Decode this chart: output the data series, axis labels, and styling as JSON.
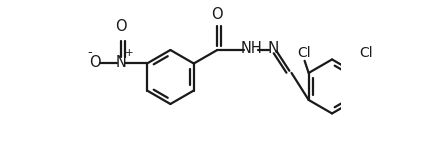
{
  "background_color": "#ffffff",
  "line_color": "#1a1a1a",
  "line_width": 1.6,
  "font_size": 9.5,
  "figsize": [
    4.38,
    1.54
  ],
  "dpi": 100,
  "xlim": [
    -1.2,
    7.8
  ],
  "ylim": [
    -2.8,
    2.8
  ]
}
